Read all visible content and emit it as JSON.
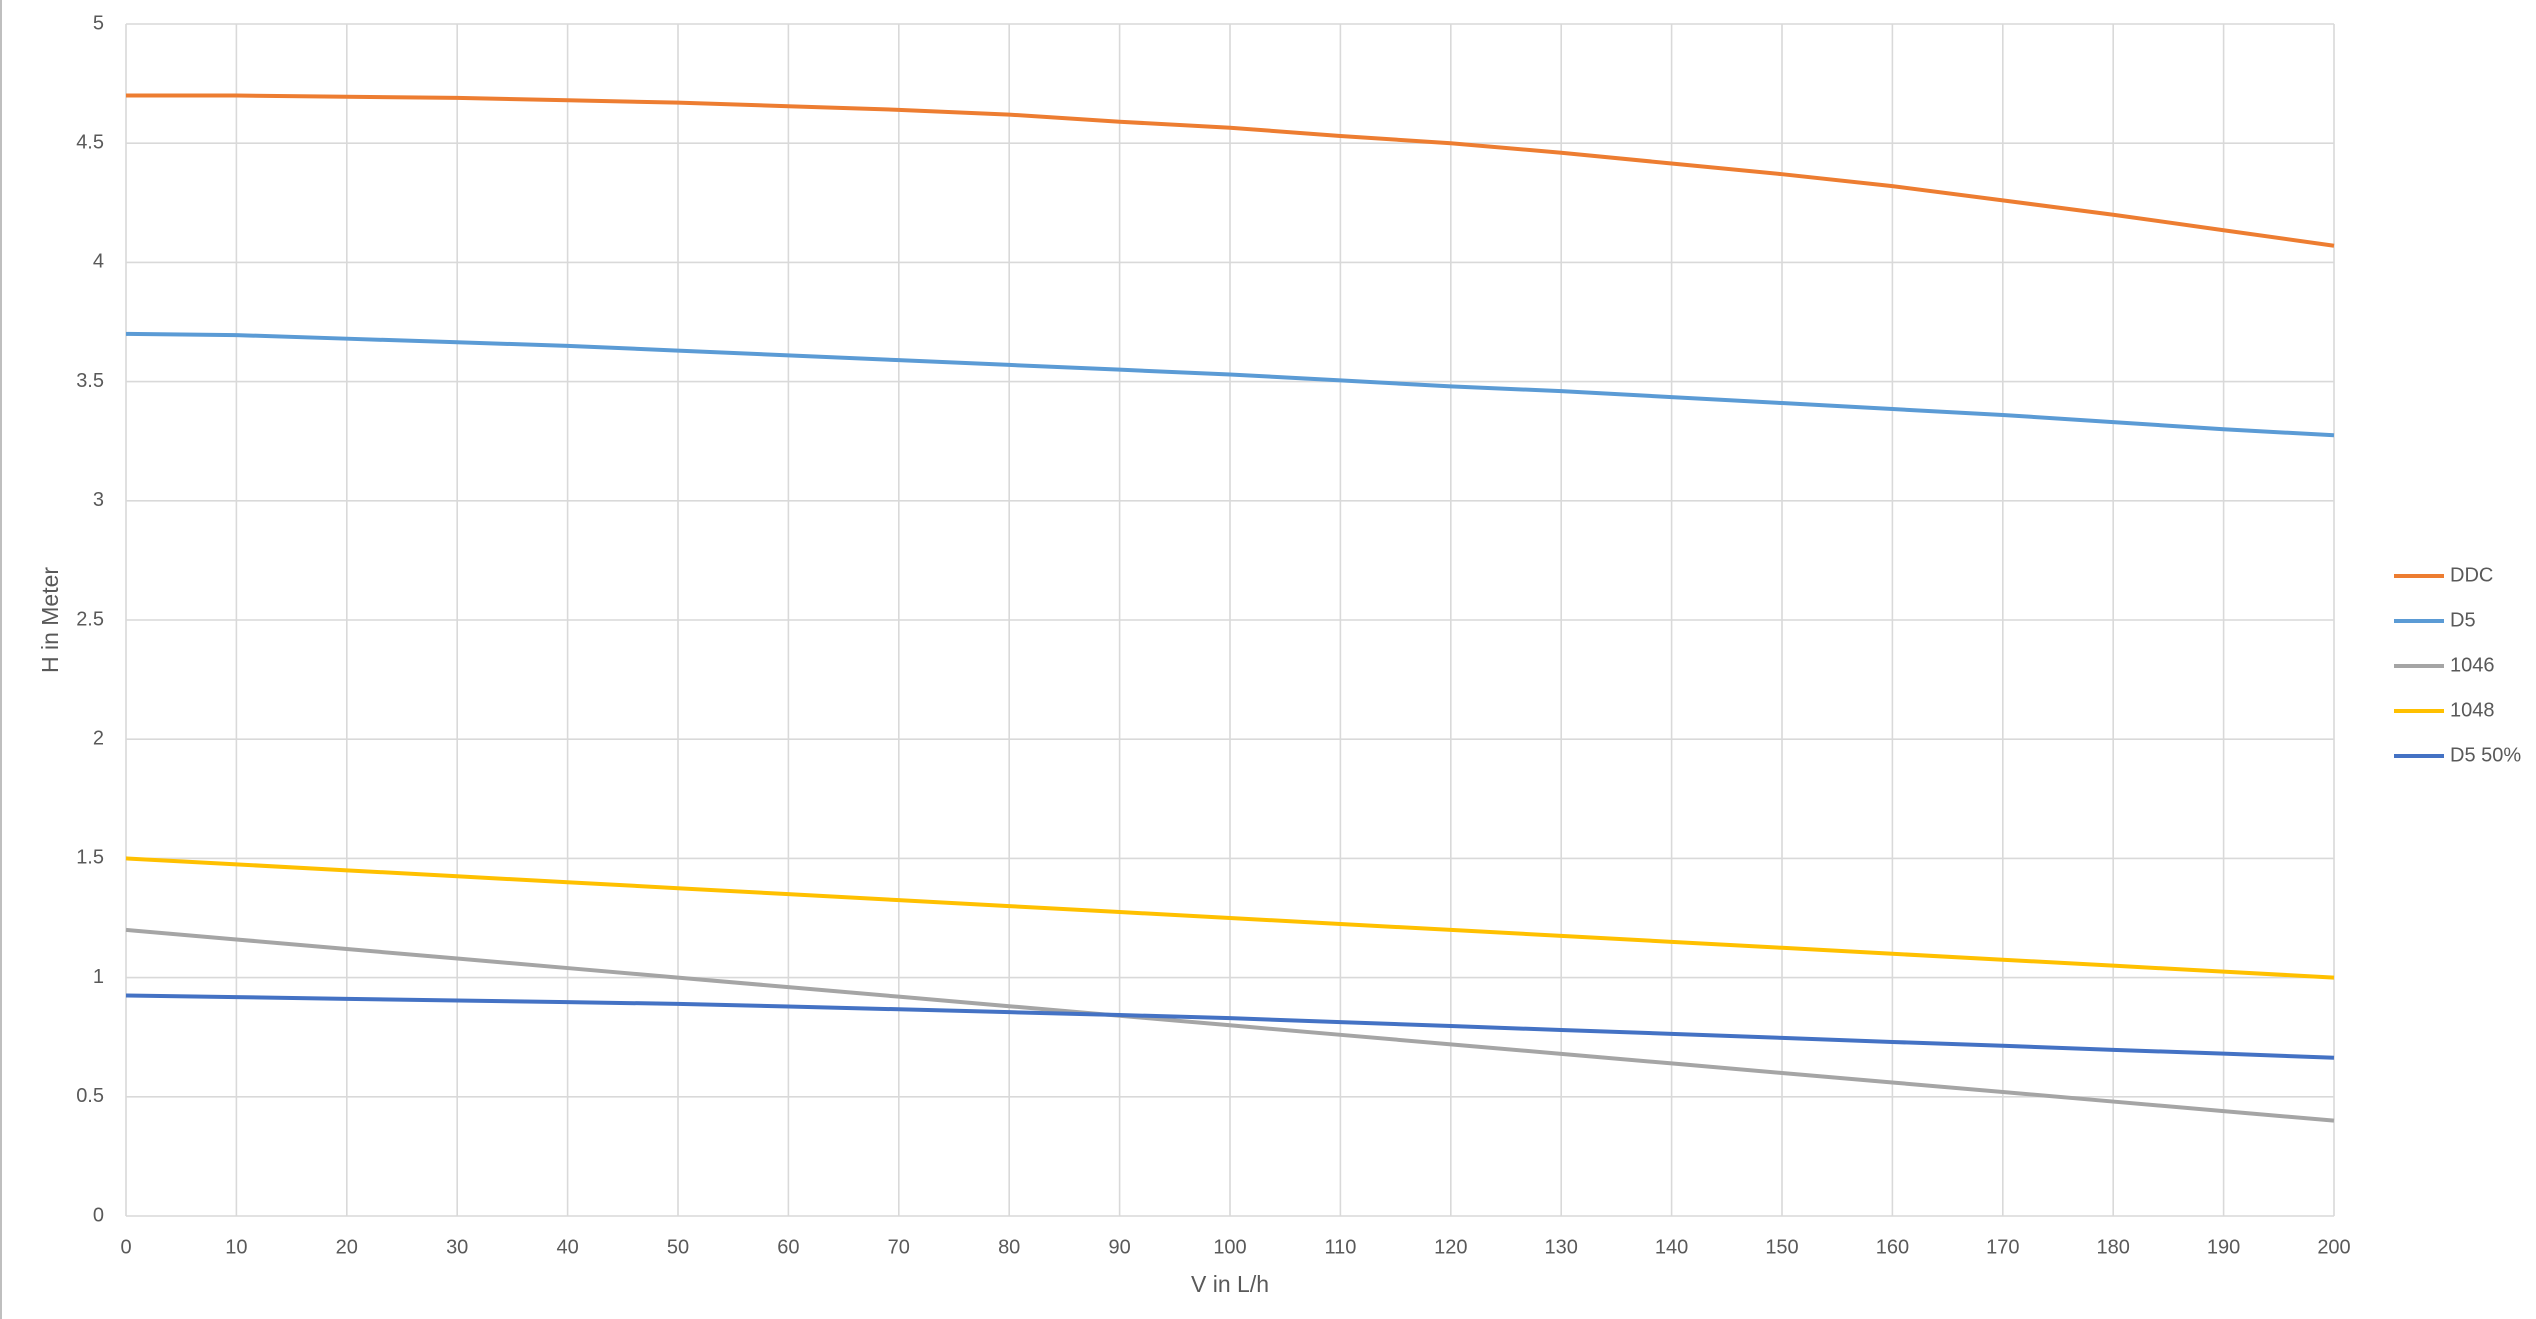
{
  "chart_data": {
    "type": "line",
    "x_label": "V in L/h",
    "y_label": "H in Meter",
    "x": [
      0,
      10,
      20,
      30,
      40,
      50,
      60,
      70,
      80,
      90,
      100,
      110,
      120,
      130,
      140,
      150,
      160,
      170,
      180,
      190,
      200
    ],
    "series": [
      {
        "name": "DDC",
        "color": "#ED7D31",
        "values": [
          4.7,
          4.7,
          4.695,
          4.69,
          4.68,
          4.67,
          4.655,
          4.64,
          4.62,
          4.59,
          4.565,
          4.53,
          4.5,
          4.46,
          4.415,
          4.37,
          4.32,
          4.26,
          4.2,
          4.135,
          4.07
        ]
      },
      {
        "name": "D5",
        "color": "#5B9BD5",
        "values": [
          3.7,
          3.695,
          3.68,
          3.665,
          3.65,
          3.63,
          3.61,
          3.59,
          3.57,
          3.55,
          3.53,
          3.505,
          3.48,
          3.46,
          3.435,
          3.41,
          3.385,
          3.36,
          3.33,
          3.3,
          3.275
        ]
      },
      {
        "name": "1046",
        "color": "#A5A5A5",
        "values": [
          1.2,
          1.16,
          1.12,
          1.08,
          1.04,
          1.0,
          0.96,
          0.92,
          0.88,
          0.84,
          0.8,
          0.76,
          0.72,
          0.68,
          0.64,
          0.6,
          0.56,
          0.52,
          0.48,
          0.44,
          0.4
        ]
      },
      {
        "name": "1048",
        "color": "#FFC000",
        "values": [
          1.5,
          1.475,
          1.45,
          1.425,
          1.4,
          1.375,
          1.35,
          1.325,
          1.3,
          1.275,
          1.25,
          1.225,
          1.2,
          1.175,
          1.15,
          1.125,
          1.1,
          1.075,
          1.05,
          1.025,
          1.0
        ]
      },
      {
        "name": "D5 50%",
        "color": "#4472C4",
        "values": [
          0.925,
          0.918,
          0.911,
          0.904,
          0.897,
          0.89,
          0.879,
          0.867,
          0.855,
          0.843,
          0.83,
          0.813,
          0.797,
          0.78,
          0.764,
          0.747,
          0.73,
          0.714,
          0.697,
          0.681,
          0.664
        ]
      }
    ],
    "xlim": [
      0,
      200
    ],
    "xticks": [
      0,
      10,
      20,
      30,
      40,
      50,
      60,
      70,
      80,
      90,
      100,
      110,
      120,
      130,
      140,
      150,
      160,
      170,
      180,
      190,
      200
    ],
    "ylim": [
      0,
      5
    ],
    "yticks": [
      0,
      0.5,
      1,
      1.5,
      2,
      2.5,
      3,
      3.5,
      4,
      4.5,
      5
    ],
    "grid": true,
    "legend": "right"
  }
}
